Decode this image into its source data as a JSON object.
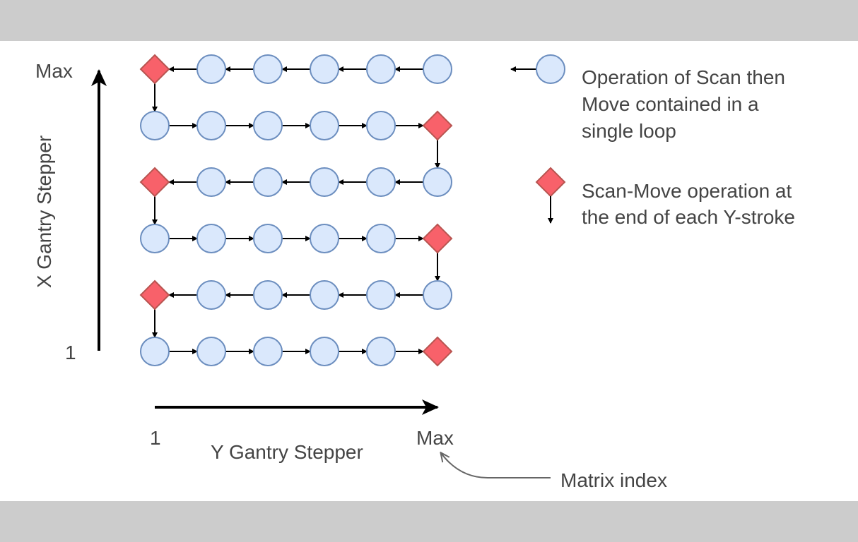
{
  "diagram": {
    "grid_columns": 6,
    "grid_rows": 6,
    "colors": {
      "scan_node_fill": "#dae8fc",
      "scan_node_stroke": "#6c8ebf",
      "end_node_fill": "#f8616a",
      "end_node_stroke": "#b85450",
      "arrow": "#000000",
      "text": "#444444",
      "pointer": "#666666",
      "band": "#cccccc"
    },
    "axes": {
      "x_axis_label": "X Gantry Stepper",
      "x_axis_min": "1",
      "x_axis_max": "Max",
      "y_axis_label": "Y Gantry Stepper",
      "y_axis_min": "1",
      "y_axis_max": "Max"
    },
    "legend": {
      "scan_line1": "Operation of Scan then",
      "scan_line2": "Move contained in a",
      "scan_line3": "single loop",
      "end_line1": "Scan-Move operation at",
      "end_line2": "the end of each Y-stroke"
    },
    "callout": {
      "text": "Matrix index"
    }
  }
}
